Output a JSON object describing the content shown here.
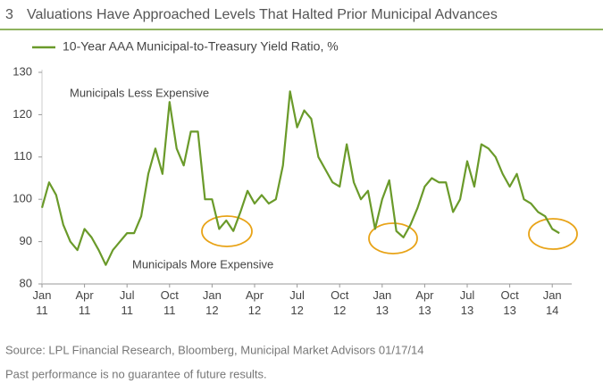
{
  "chart_data": {
    "type": "line",
    "number": "3",
    "title": "Valuations Have Approached Levels That Halted Prior Municipal Advances",
    "categories": [
      "Jan 11",
      null,
      null,
      null,
      null,
      null,
      "Apr 11",
      null,
      null,
      null,
      null,
      null,
      "Jul 11",
      null,
      null,
      null,
      null,
      null,
      "Oct 11",
      null,
      null,
      null,
      null,
      null,
      "Jan 12",
      null,
      null,
      null,
      null,
      null,
      "Apr 12",
      null,
      null,
      null,
      null,
      null,
      "Jul 12",
      null,
      null,
      null,
      null,
      null,
      "Oct 12",
      null,
      null,
      null,
      null,
      null,
      "Jan 13",
      null,
      null,
      null,
      null,
      null,
      "Apr 13",
      null,
      null,
      null,
      null,
      null,
      "Jul 13",
      null,
      null,
      null,
      null,
      null,
      "Oct 13",
      null,
      null,
      null,
      null,
      null,
      "Jan 14",
      null
    ],
    "series": [
      {
        "name": "10-Year AAA Municipal-to-Treasury Yield Ratio, %",
        "color": "#6a9a2a",
        "values": [
          98,
          104,
          101,
          94,
          90,
          88,
          93,
          91,
          88,
          84.5,
          88,
          90,
          92,
          92,
          96,
          106,
          112,
          106,
          123,
          112,
          108,
          116,
          116,
          100,
          100,
          93,
          95,
          92.5,
          97,
          102,
          99,
          101,
          99,
          100,
          108,
          125.5,
          117,
          121,
          119,
          110,
          107,
          104,
          103,
          113,
          104,
          100,
          102,
          93,
          100,
          104.5,
          92.5,
          91,
          94,
          98,
          103,
          105,
          104,
          104,
          97,
          100,
          109,
          103,
          113,
          112,
          110,
          106,
          103,
          106,
          100,
          99,
          97,
          96,
          93,
          92
        ]
      }
    ],
    "ylim": [
      80,
      130
    ],
    "yticks": [
      80,
      90,
      100,
      110,
      120,
      130
    ],
    "annotations": [
      "Municipals Less Expensive",
      "Municipals More Expensive"
    ],
    "source": "Source: LPL Financial Research, Bloomberg, Municipal Market Advisors   01/17/14",
    "disclaimer": "Past performance is no guarantee of future results."
  }
}
